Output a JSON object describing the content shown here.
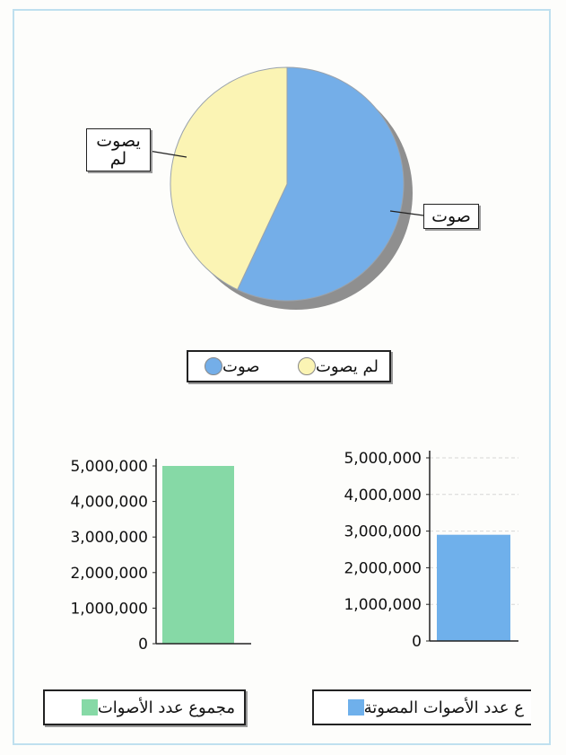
{
  "colors": {
    "voted": "#74aee8",
    "not_voted": "#fbf4b4",
    "total_bar": "#86d9a6",
    "voted_bar": "#6fb0eb",
    "frame": "#bfe0ef"
  },
  "chart_data": [
    {
      "type": "pie",
      "slices": [
        {
          "label": "صوت",
          "value": 57,
          "color": "#74aee8"
        },
        {
          "label": "لم يصوت",
          "value": 43,
          "color": "#fbf4b4"
        }
      ],
      "callouts": {
        "voted": "صوت",
        "not_voted_line1": "يصوت",
        "not_voted_line2": "لم"
      },
      "legend": {
        "voted": "صوت",
        "not_voted": "لم يصوت",
        "placement": "bottom"
      }
    },
    {
      "type": "bar",
      "categories": [
        "مجموع عدد الأصوات"
      ],
      "values": [
        5000000
      ],
      "ylim": [
        0,
        5000000
      ],
      "yticks": [
        "0",
        "1,000,000",
        "2,000,000",
        "3,000,000",
        "4,000,000",
        "5,000,000"
      ],
      "color": "#86d9a6",
      "legend": "مجموع عدد الأصوات"
    },
    {
      "type": "bar",
      "categories": [
        "عدد الأصوات المصوتة"
      ],
      "values": [
        2900000
      ],
      "ylim": [
        0,
        5000000
      ],
      "yticks": [
        "0",
        "1,000,000",
        "2,000,000",
        "3,000,000",
        "4,000,000",
        "5,000,000"
      ],
      "grid": true,
      "color": "#6fb0eb",
      "legend": "ع عدد الأصوات المصوتة"
    }
  ]
}
